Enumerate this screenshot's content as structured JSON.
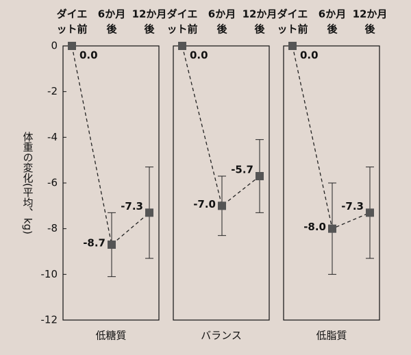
{
  "chart_data": {
    "type": "line",
    "y_label": "体重の変化(平均、kg)",
    "ylim": [
      -12,
      0
    ],
    "yticks": [
      0,
      -2,
      -4,
      -6,
      -8,
      -10,
      -12
    ],
    "categories": [
      [
        "ダイエ",
        "ット前"
      ],
      [
        "6か月",
        "後"
      ],
      [
        "12か月",
        "後"
      ]
    ],
    "color": "#555555",
    "line_style": "dashed",
    "panels": [
      {
        "name": "低糖質",
        "values": [
          0,
          -8.7,
          -7.3
        ],
        "value_labels": [
          "0.0",
          "-8.7",
          "-7.3"
        ],
        "errors": [
          null,
          1.4,
          2.0
        ]
      },
      {
        "name": "バランス",
        "values": [
          0,
          -7.0,
          -5.7
        ],
        "value_labels": [
          "0.0",
          "-7.0",
          "-5.7"
        ],
        "errors": [
          null,
          1.3,
          1.6
        ]
      },
      {
        "name": "低脂質",
        "values": [
          0,
          -8.0,
          -7.3
        ],
        "value_labels": [
          "0.0",
          "-8.0",
          "-7.3"
        ],
        "errors": [
          null,
          2.0,
          2.0
        ]
      }
    ]
  }
}
